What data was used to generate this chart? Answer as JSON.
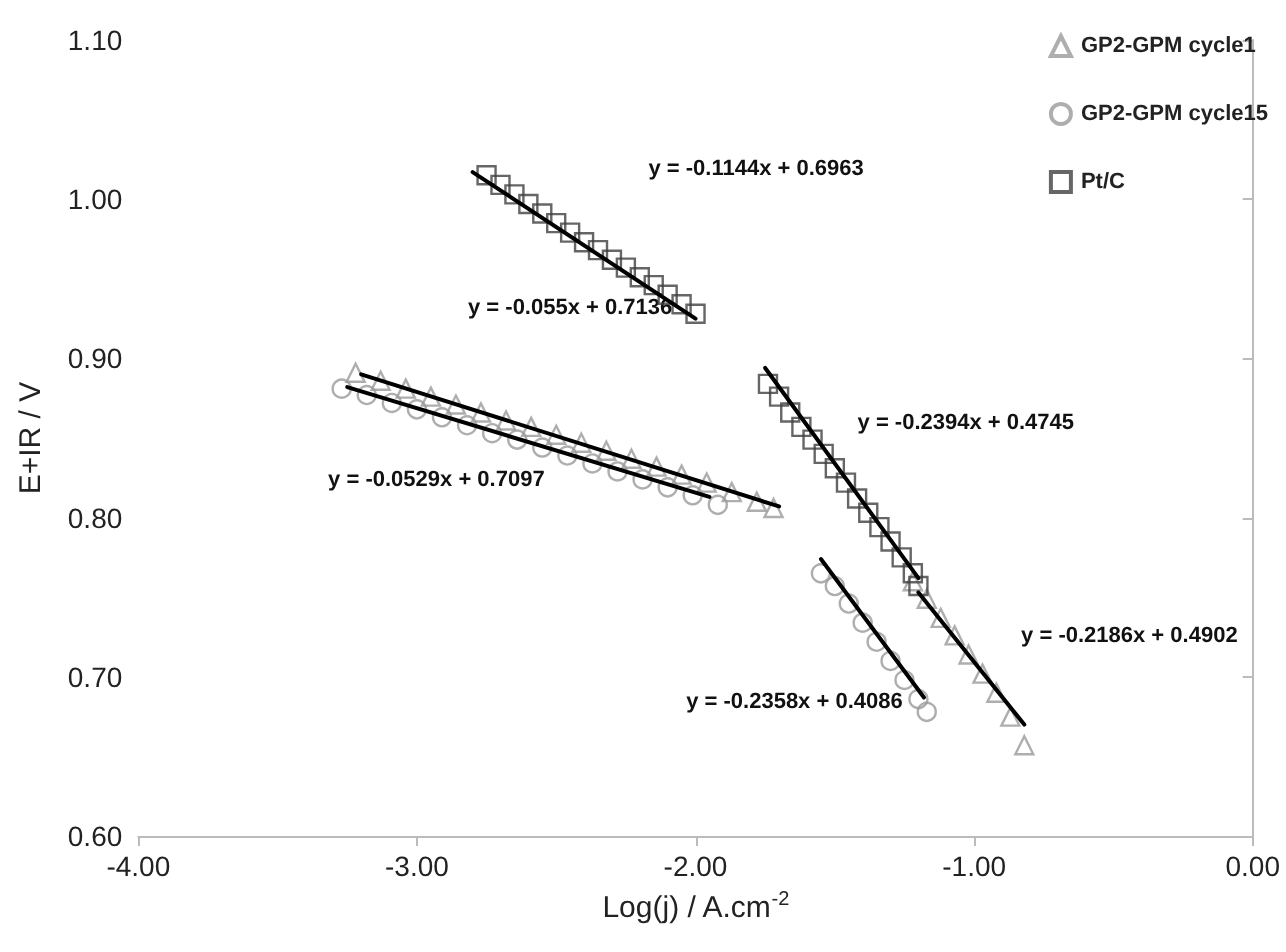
{
  "chart_data": {
    "type": "scatter",
    "xlabel": "Log(j) / A.cm$^{-2}$",
    "ylabel": "E+IR / V",
    "xlim": [
      -4,
      0
    ],
    "xticks": [
      {
        "value": -4,
        "label": "-4.00"
      },
      {
        "value": -3,
        "label": "-3.00"
      },
      {
        "value": -2,
        "label": "-2.00"
      },
      {
        "value": -1,
        "label": "-1.00"
      },
      {
        "value": 0,
        "label": "0.00"
      }
    ],
    "ylim": [
      0.6,
      1.1
    ],
    "yticks": [
      {
        "value": 0.6,
        "label": "0.60"
      },
      {
        "value": 0.7,
        "label": "0.70"
      },
      {
        "value": 0.8,
        "label": "0.80"
      },
      {
        "value": 0.9,
        "label": "0.90"
      },
      {
        "value": 1.0,
        "label": "1.00"
      },
      {
        "value": 1.1,
        "label": "1.10"
      }
    ],
    "grid": false,
    "legend": "top right",
    "series": [
      {
        "name": "GP2-GPM cycle1",
        "color": "#9a9a9a",
        "marker": "triangle",
        "x": [
          -3.22,
          -3.13,
          -3.04,
          -2.95,
          -2.86,
          -2.77,
          -2.68,
          -2.59,
          -2.5,
          -2.41,
          -2.32,
          -2.23,
          -2.14,
          -2.05,
          -1.96,
          -1.87,
          -1.78,
          -1.72,
          -1.22,
          -1.17,
          -1.12,
          -1.07,
          -1.02,
          -0.97,
          -0.92,
          -0.87,
          -0.82
        ],
        "values": [
          0.891,
          0.886,
          0.881,
          0.876,
          0.871,
          0.866,
          0.861,
          0.857,
          0.852,
          0.847,
          0.842,
          0.837,
          0.832,
          0.827,
          0.822,
          0.816,
          0.81,
          0.806,
          0.76,
          0.749,
          0.737,
          0.726,
          0.714,
          0.702,
          0.69,
          0.675,
          0.657
        ]
      },
      {
        "name": "GP2-GPM cycle15",
        "color": "#9a9a9a",
        "marker": "circle",
        "x": [
          -3.27,
          -3.18,
          -3.09,
          -3.0,
          -2.91,
          -2.82,
          -2.73,
          -2.64,
          -2.55,
          -2.46,
          -2.37,
          -2.28,
          -2.19,
          -2.1,
          -2.01,
          -1.92,
          -1.55,
          -1.5,
          -1.45,
          -1.4,
          -1.35,
          -1.3,
          -1.25,
          -1.2,
          -1.17
        ],
        "values": [
          0.881,
          0.877,
          0.872,
          0.868,
          0.863,
          0.858,
          0.853,
          0.849,
          0.844,
          0.839,
          0.834,
          0.829,
          0.824,
          0.819,
          0.814,
          0.808,
          0.765,
          0.757,
          0.746,
          0.734,
          0.722,
          0.71,
          0.698,
          0.686,
          0.678
        ]
      },
      {
        "name": "Pt/C",
        "color": "#404040",
        "marker": "square",
        "x": [
          -2.75,
          -2.7,
          -2.65,
          -2.6,
          -2.55,
          -2.5,
          -2.45,
          -2.4,
          -2.35,
          -2.3,
          -2.25,
          -2.2,
          -2.15,
          -2.1,
          -2.05,
          -2.0,
          -1.74,
          -1.7,
          -1.66,
          -1.62,
          -1.58,
          -1.54,
          -1.5,
          -1.46,
          -1.42,
          -1.38,
          -1.34,
          -1.3,
          -1.26,
          -1.22,
          -1.2
        ],
        "values": [
          1.015,
          1.009,
          1.003,
          0.997,
          0.991,
          0.985,
          0.979,
          0.973,
          0.968,
          0.962,
          0.957,
          0.951,
          0.946,
          0.94,
          0.934,
          0.928,
          0.884,
          0.876,
          0.866,
          0.857,
          0.849,
          0.84,
          0.831,
          0.822,
          0.812,
          0.803,
          0.794,
          0.785,
          0.775,
          0.765,
          0.757
        ]
      },
      {
        "type": "line",
        "color": "#000000",
        "marker": "none",
        "x": [
          -2.8,
          -2.0
        ],
        "values": [
          1.017,
          0.925
        ]
      },
      {
        "type": "line",
        "color": "#000000",
        "marker": "none",
        "x": [
          -3.2,
          -1.7
        ],
        "values": [
          0.89,
          0.807
        ]
      },
      {
        "type": "line",
        "color": "#000000",
        "marker": "none",
        "x": [
          -3.25,
          -1.95
        ],
        "values": [
          0.882,
          0.813
        ]
      },
      {
        "type": "line",
        "color": "#000000",
        "marker": "none",
        "x": [
          -1.75,
          -1.2
        ],
        "values": [
          0.894,
          0.762
        ]
      },
      {
        "type": "line",
        "color": "#000000",
        "marker": "none",
        "x": [
          -1.2,
          -0.82
        ],
        "values": [
          0.753,
          0.67
        ]
      },
      {
        "type": "line",
        "color": "#000000",
        "marker": "none",
        "x": [
          -1.55,
          -1.18
        ],
        "values": [
          0.774,
          0.687
        ]
      }
    ],
    "annotations": [
      "y = -0.1144x + 0.6963",
      "y = -0.055x + 0.7136",
      "y = -0.0529x + 0.7097",
      "y = -0.2394x + 0.4745",
      "y = -0.2186x + 0.4902",
      "y = -0.2358x + 0.4086"
    ]
  }
}
